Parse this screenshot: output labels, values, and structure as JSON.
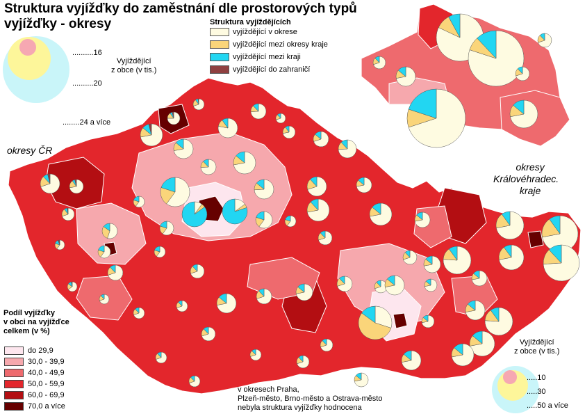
{
  "title": "Struktura vyjížďky do zaměstnání dle prostorových typů vyjížďky - okresy",
  "structure_legend": {
    "title": "Struktura vyjíždějících",
    "items": [
      {
        "label": "vyjíždějící v okrese",
        "color": "#fefbe1"
      },
      {
        "label": "vyjíždějící mezi okresy kraje",
        "color": "#fad57a"
      },
      {
        "label": "vyjíždějící mezi kraji",
        "color": "#22d6f2"
      },
      {
        "label": "vyjíždějící do zahraničí",
        "color": "#8f4040"
      }
    ]
  },
  "size_legend_top": {
    "title_line1": "Vyjíždějící",
    "title_line2": "z obce (v tis.)",
    "values": [
      "..........16",
      "..........20",
      "........24 a více"
    ]
  },
  "size_legend_bottom": {
    "title_line1": "Vyjíždějící",
    "title_line2": "z obce (v tis.)",
    "values": [
      ".....10",
      ".....30",
      ".....50 a více"
    ]
  },
  "map_labels": {
    "okresy_cr": "okresy ČR",
    "okresy_hk_line1": "okresy",
    "okresy_hk_line2": "Královéhradec.",
    "okresy_hk_line3": "kraje"
  },
  "share_legend": {
    "title_line1": "Podíl vyjížďky",
    "title_line2": "v obci na vyjížďce",
    "title_line3": "celkem (v %)",
    "items": [
      {
        "label": "do 29,9",
        "color": "#fde6ee"
      },
      {
        "label": "30,0 - 39,9",
        "color": "#f6a8ad"
      },
      {
        "label": "40,0 - 49,9",
        "color": "#ee6a6e"
      },
      {
        "label": "50,0 - 59,9",
        "color": "#e3262c"
      },
      {
        "label": "60,0 - 69,9",
        "color": "#b30e12"
      },
      {
        "label": "70,0 a více",
        "color": "#660000"
      }
    ]
  },
  "note": {
    "line1": "v okresech Praha,",
    "line2": "Plzeň-město, Brno-město a Ostrava-město",
    "line3": "nebyla struktura vyjížďky hodnocena"
  }
}
